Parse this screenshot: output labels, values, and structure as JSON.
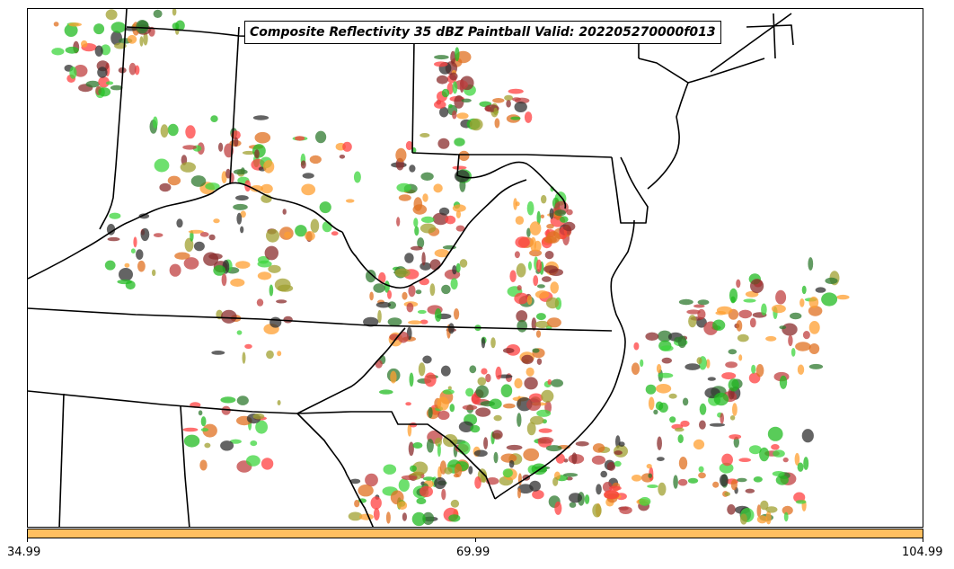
{
  "title": "Composite Reflectivity 35 dBZ Paintball Valid: 202205270000f013",
  "member_colors": [
    "#ff4040",
    "#ff9f30",
    "#3dd63d",
    "#a0a030",
    "#8a2c2c",
    "#2f7a2f",
    "#303030",
    "#e07020",
    "#22bb22",
    "#c04040"
  ],
  "colorbar": {
    "color": "#ffbf60",
    "ticks": [
      "34.99",
      "69.99",
      "104.99"
    ]
  },
  "map_icon": "composite-reflectivity-map"
}
